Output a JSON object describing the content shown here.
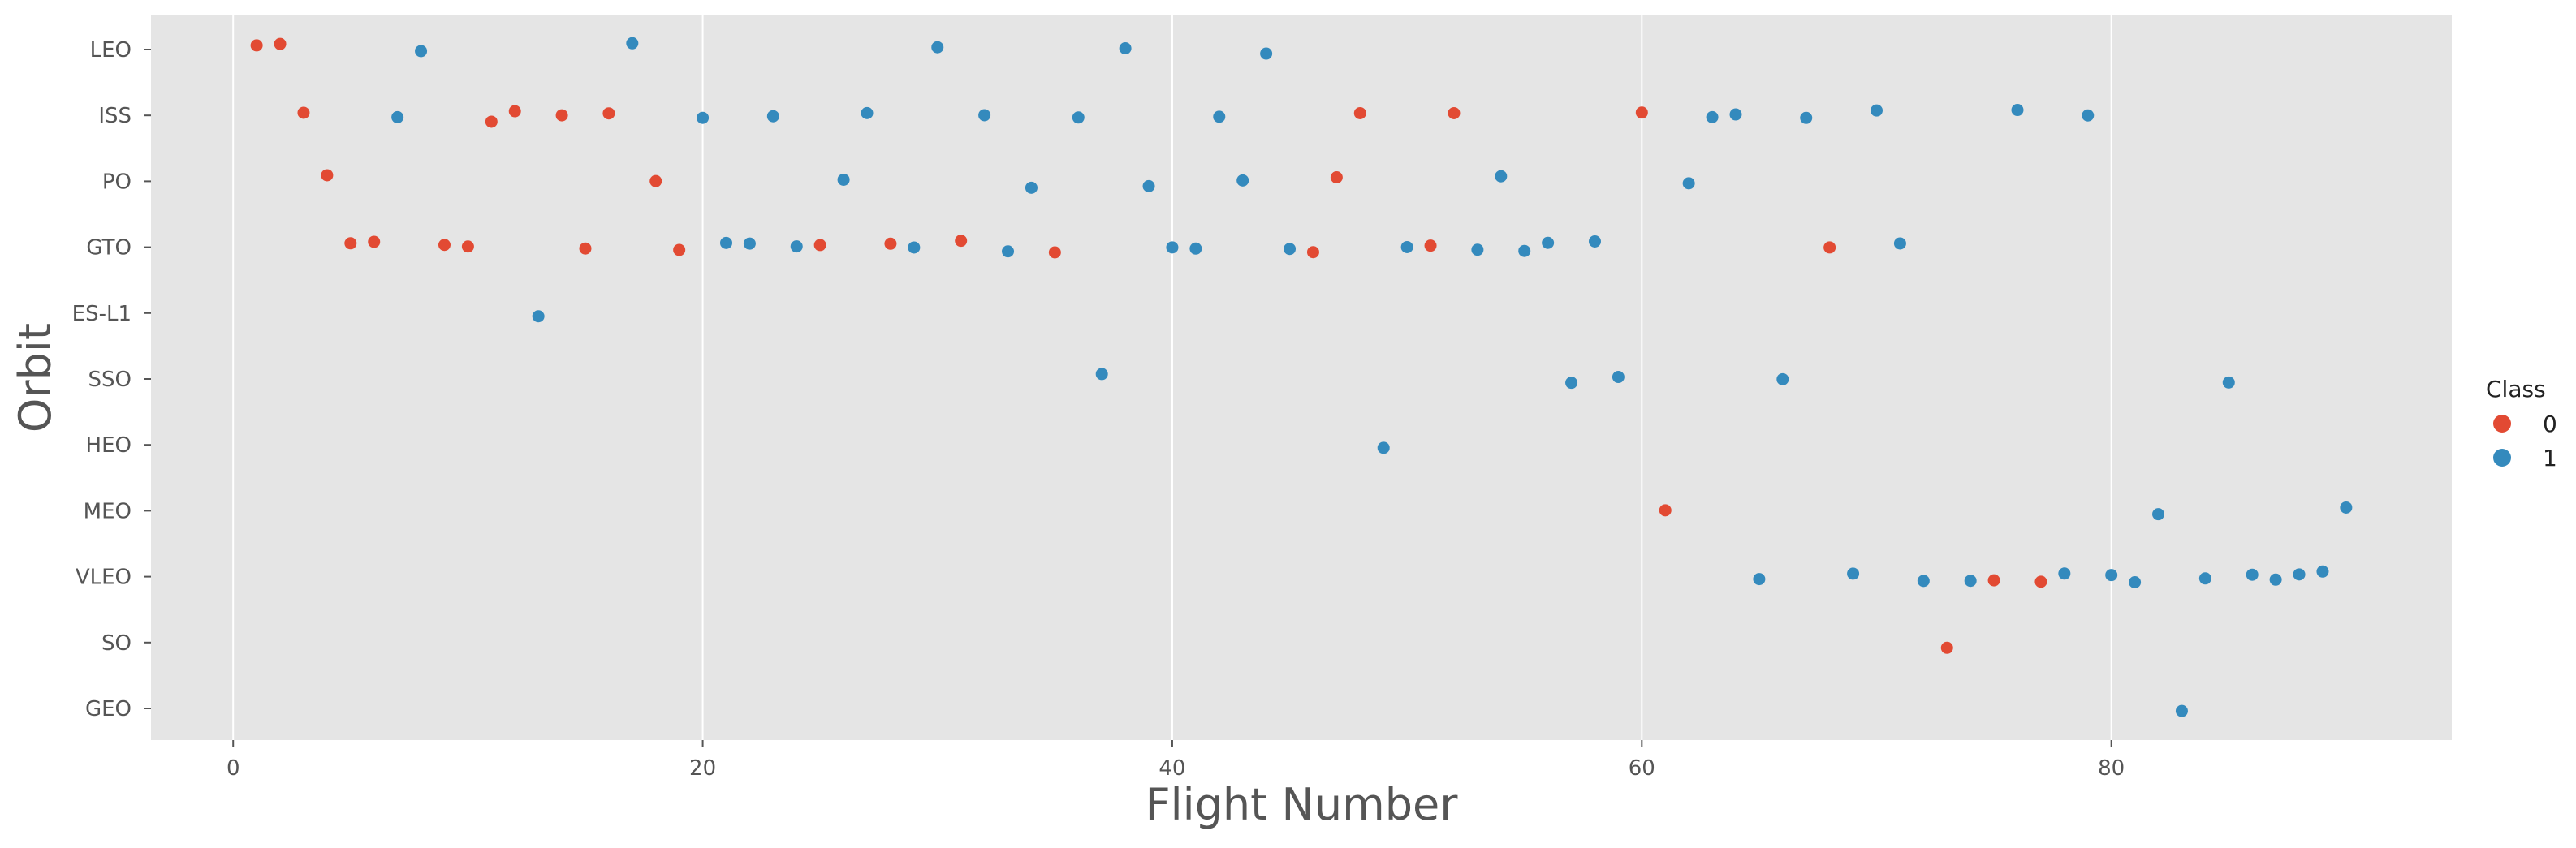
{
  "chart_data": {
    "type": "scatter",
    "title": "",
    "xlabel": "Flight Number",
    "ylabel": "Orbit",
    "xlim": [
      -3.5,
      94.5
    ],
    "x_ticks": [
      0,
      20,
      40,
      60,
      80
    ],
    "categories": [
      "LEO",
      "ISS",
      "PO",
      "GTO",
      "ES-L1",
      "SSO",
      "HEO",
      "MEO",
      "VLEO",
      "SO",
      "GEO"
    ],
    "grid": true,
    "legend": {
      "title": "Class",
      "position": "right",
      "entries": [
        "0",
        "1"
      ]
    },
    "colors": {
      "0": "#e24a33",
      "1": "#348abd"
    },
    "series": [
      {
        "name": "0",
        "points": [
          [
            1,
            "LEO"
          ],
          [
            2,
            "LEO"
          ],
          [
            3,
            "ISS"
          ],
          [
            4,
            "PO"
          ],
          [
            5,
            "GTO"
          ],
          [
            6,
            "GTO"
          ],
          [
            9,
            "GTO"
          ],
          [
            10,
            "GTO"
          ],
          [
            11,
            "ISS"
          ],
          [
            12,
            "ISS"
          ],
          [
            14,
            "ISS"
          ],
          [
            15,
            "GTO"
          ],
          [
            16,
            "ISS"
          ],
          [
            18,
            "PO"
          ],
          [
            19,
            "GTO"
          ],
          [
            25,
            "GTO"
          ],
          [
            28,
            "GTO"
          ],
          [
            31,
            "GTO"
          ],
          [
            35,
            "GTO"
          ],
          [
            46,
            "GTO"
          ],
          [
            47,
            "PO"
          ],
          [
            48,
            "ISS"
          ],
          [
            51,
            "GTO"
          ],
          [
            52,
            "ISS"
          ],
          [
            60,
            "ISS"
          ],
          [
            61,
            "MEO"
          ],
          [
            68,
            "GTO"
          ],
          [
            73,
            "SO"
          ],
          [
            75,
            "VLEO"
          ],
          [
            77,
            "VLEO"
          ]
        ]
      },
      {
        "name": "1",
        "points": [
          [
            7,
            "ISS"
          ],
          [
            8,
            "LEO"
          ],
          [
            13,
            "ES-L1"
          ],
          [
            17,
            "LEO"
          ],
          [
            20,
            "ISS"
          ],
          [
            21,
            "GTO"
          ],
          [
            22,
            "GTO"
          ],
          [
            23,
            "ISS"
          ],
          [
            24,
            "GTO"
          ],
          [
            26,
            "PO"
          ],
          [
            27,
            "ISS"
          ],
          [
            29,
            "GTO"
          ],
          [
            30,
            "LEO"
          ],
          [
            32,
            "ISS"
          ],
          [
            33,
            "GTO"
          ],
          [
            34,
            "PO"
          ],
          [
            36,
            "ISS"
          ],
          [
            37,
            "SSO"
          ],
          [
            38,
            "LEO"
          ],
          [
            39,
            "PO"
          ],
          [
            40,
            "GTO"
          ],
          [
            41,
            "GTO"
          ],
          [
            42,
            "ISS"
          ],
          [
            43,
            "PO"
          ],
          [
            44,
            "LEO"
          ],
          [
            45,
            "GTO"
          ],
          [
            49,
            "HEO"
          ],
          [
            50,
            "GTO"
          ],
          [
            53,
            "GTO"
          ],
          [
            54,
            "PO"
          ],
          [
            55,
            "GTO"
          ],
          [
            56,
            "GTO"
          ],
          [
            57,
            "SSO"
          ],
          [
            58,
            "GTO"
          ],
          [
            59,
            "SSO"
          ],
          [
            62,
            "PO"
          ],
          [
            63,
            "ISS"
          ],
          [
            64,
            "ISS"
          ],
          [
            65,
            "VLEO"
          ],
          [
            66,
            "SSO"
          ],
          [
            67,
            "ISS"
          ],
          [
            69,
            "VLEO"
          ],
          [
            70,
            "ISS"
          ],
          [
            71,
            "GTO"
          ],
          [
            72,
            "VLEO"
          ],
          [
            74,
            "VLEO"
          ],
          [
            76,
            "ISS"
          ],
          [
            78,
            "VLEO"
          ],
          [
            79,
            "ISS"
          ],
          [
            80,
            "VLEO"
          ],
          [
            81,
            "VLEO"
          ],
          [
            82,
            "MEO"
          ],
          [
            83,
            "GEO"
          ],
          [
            84,
            "VLEO"
          ],
          [
            85,
            "SSO"
          ],
          [
            86,
            "VLEO"
          ],
          [
            87,
            "VLEO"
          ],
          [
            88,
            "VLEO"
          ],
          [
            89,
            "VLEO"
          ],
          [
            90,
            "MEO"
          ]
        ]
      }
    ]
  }
}
